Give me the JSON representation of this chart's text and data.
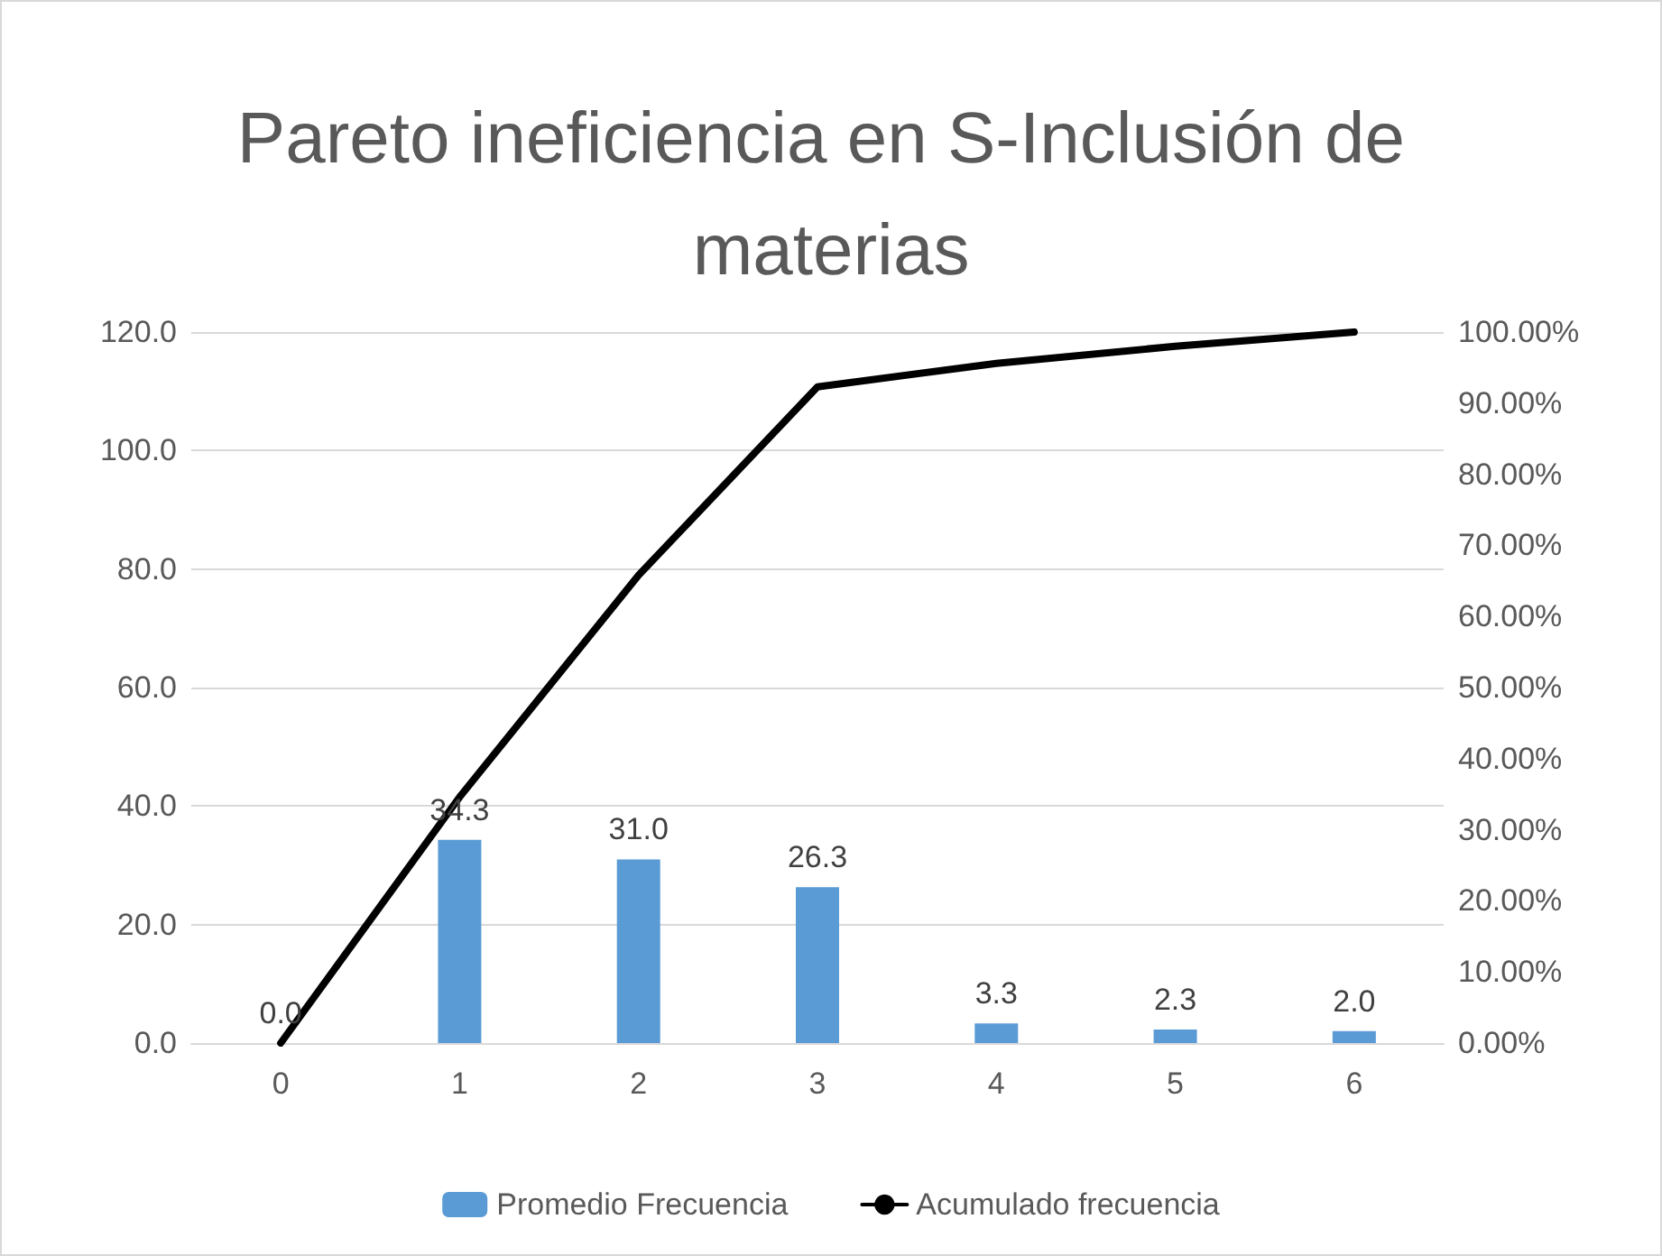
{
  "chart_data": {
    "type": "bar",
    "title": "Pareto ineficiencia en S-Inclusión de materias",
    "categories": [
      "0",
      "1",
      "2",
      "3",
      "4",
      "5",
      "6"
    ],
    "series": [
      {
        "name": "Promedio Frecuencia",
        "color": "#5b9bd5",
        "values": [
          0,
          34.3,
          31.0,
          26.3,
          3.3,
          2.3,
          2.0
        ],
        "value_labels": [
          "0.0",
          "34.3",
          "31.0",
          "26.3",
          "3.3",
          "2.3",
          "2.0"
        ]
      },
      {
        "name": "Acumulado frecuencia",
        "type": "line",
        "axis": "y2",
        "color": "#000000",
        "values": [
          0,
          34.6,
          65.8,
          92.3,
          95.6,
          98.0,
          100
        ]
      }
    ],
    "ylim": [
      0,
      120
    ],
    "yticks": [
      {
        "value": 0,
        "label": "0.0"
      },
      {
        "value": 20,
        "label": "20.0"
      },
      {
        "value": 40,
        "label": "40.0"
      },
      {
        "value": 60,
        "label": "60.0"
      },
      {
        "value": 80,
        "label": "80.0"
      },
      {
        "value": 100,
        "label": "100.0"
      },
      {
        "value": 120,
        "label": "120.0"
      }
    ],
    "y2lim": [
      0,
      100
    ],
    "y2ticks": [
      {
        "value": 0,
        "label": "0.00%"
      },
      {
        "value": 10,
        "label": "10.00%"
      },
      {
        "value": 20,
        "label": "20.00%"
      },
      {
        "value": 30,
        "label": "30.00%"
      },
      {
        "value": 40,
        "label": "40.00%"
      },
      {
        "value": 50,
        "label": "50.00%"
      },
      {
        "value": 60,
        "label": "60.00%"
      },
      {
        "value": 70,
        "label": "70.00%"
      },
      {
        "value": 80,
        "label": "80.00%"
      },
      {
        "value": 90,
        "label": "90.00%"
      },
      {
        "value": 100,
        "label": "100.00%"
      }
    ],
    "grid": "y",
    "legend": "bottom",
    "marker": "none"
  }
}
